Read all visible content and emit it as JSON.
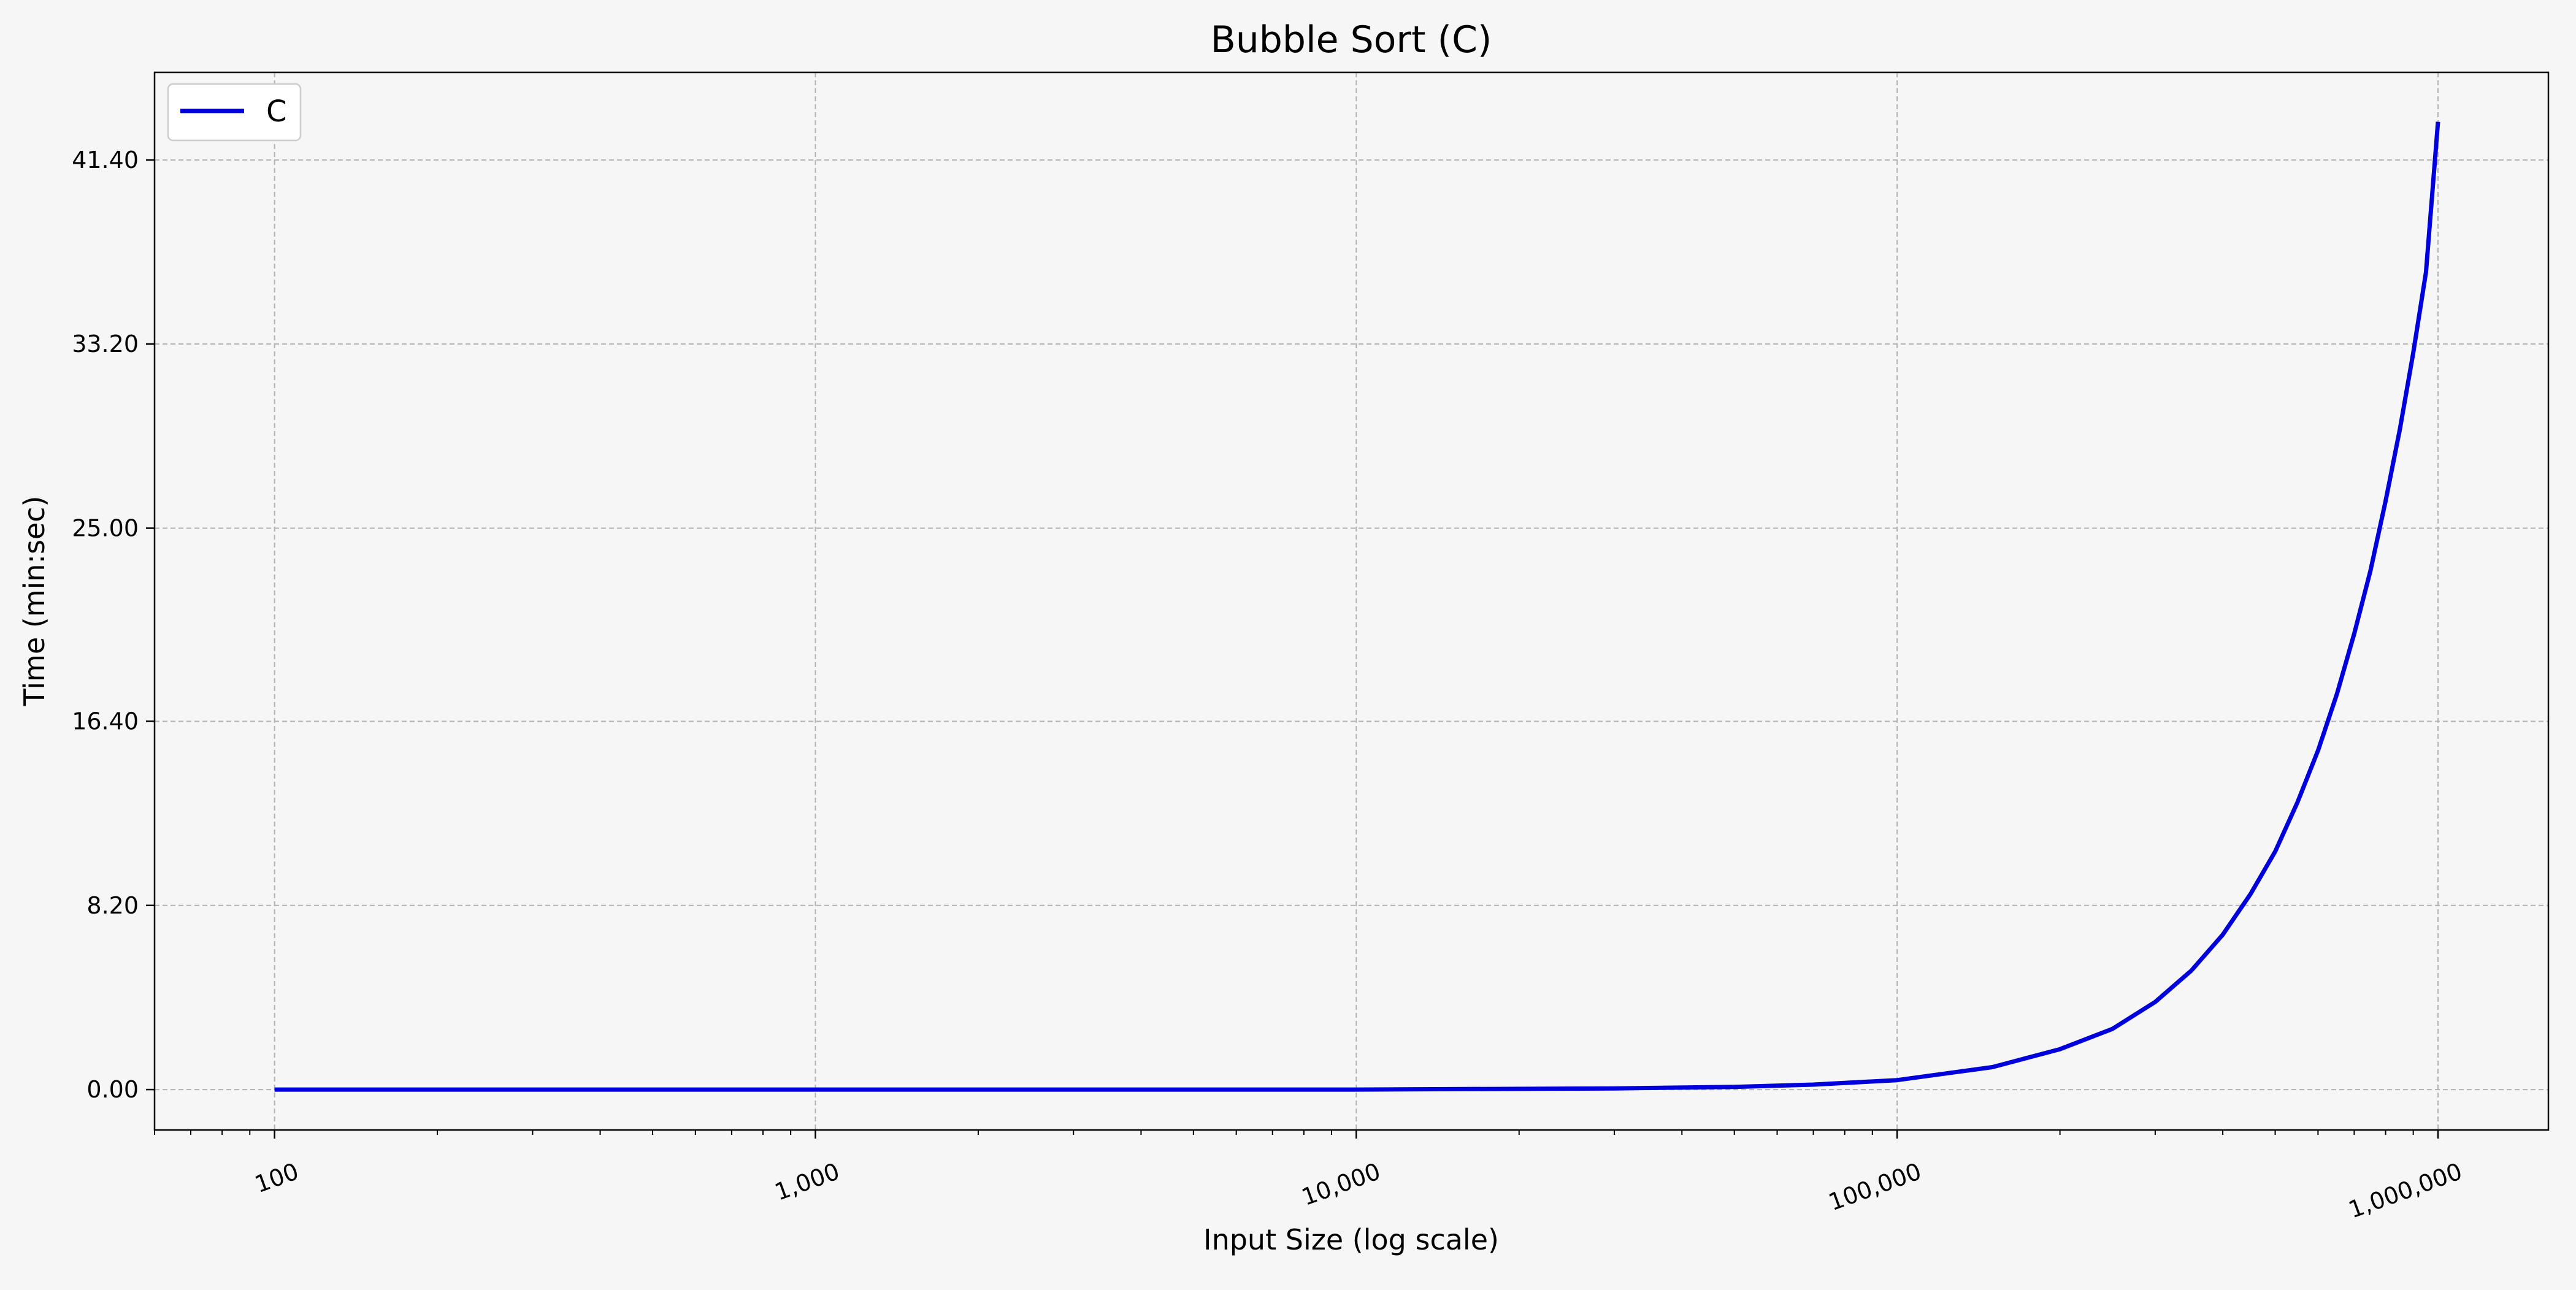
{
  "chart_data": {
    "type": "line",
    "title": "Bubble Sort (C)",
    "xlabel": "Input Size (log scale)",
    "ylabel": "Time (min:sec)",
    "x_scale": "log",
    "xlim": [
      60,
      1600000
    ],
    "ylim": [
      -1.8,
      45.3
    ],
    "x_ticks": [
      100,
      1000,
      10000,
      100000,
      1000000
    ],
    "x_tick_labels": [
      "100",
      "1,000",
      "10,000",
      "100,000",
      "1,000,000"
    ],
    "y_ticks": [
      0,
      8.2,
      16.4,
      25.0,
      33.2,
      41.4
    ],
    "y_tick_labels": [
      "0.00",
      "8.20",
      "16.40",
      "25.00",
      "33.20",
      "41.40"
    ],
    "grid": true,
    "legend_position": "top-left",
    "series": [
      {
        "name": "C",
        "color": "#0000dd",
        "x": [
          100,
          1000,
          10000,
          30000,
          50000,
          70000,
          100000,
          150000,
          200000,
          250000,
          300000,
          350000,
          400000,
          450000,
          500000,
          550000,
          600000,
          650000,
          700000,
          750000,
          800000,
          850000,
          900000,
          950000,
          1000000
        ],
        "y": [
          0,
          0,
          0,
          0.05,
          0.12,
          0.22,
          0.42,
          1.0,
          1.8,
          2.7,
          3.9,
          5.3,
          6.9,
          8.7,
          10.6,
          12.8,
          15.1,
          17.6,
          20.3,
          23.1,
          26.2,
          29.4,
          32.8,
          36.4,
          43.1
        ]
      }
    ]
  }
}
